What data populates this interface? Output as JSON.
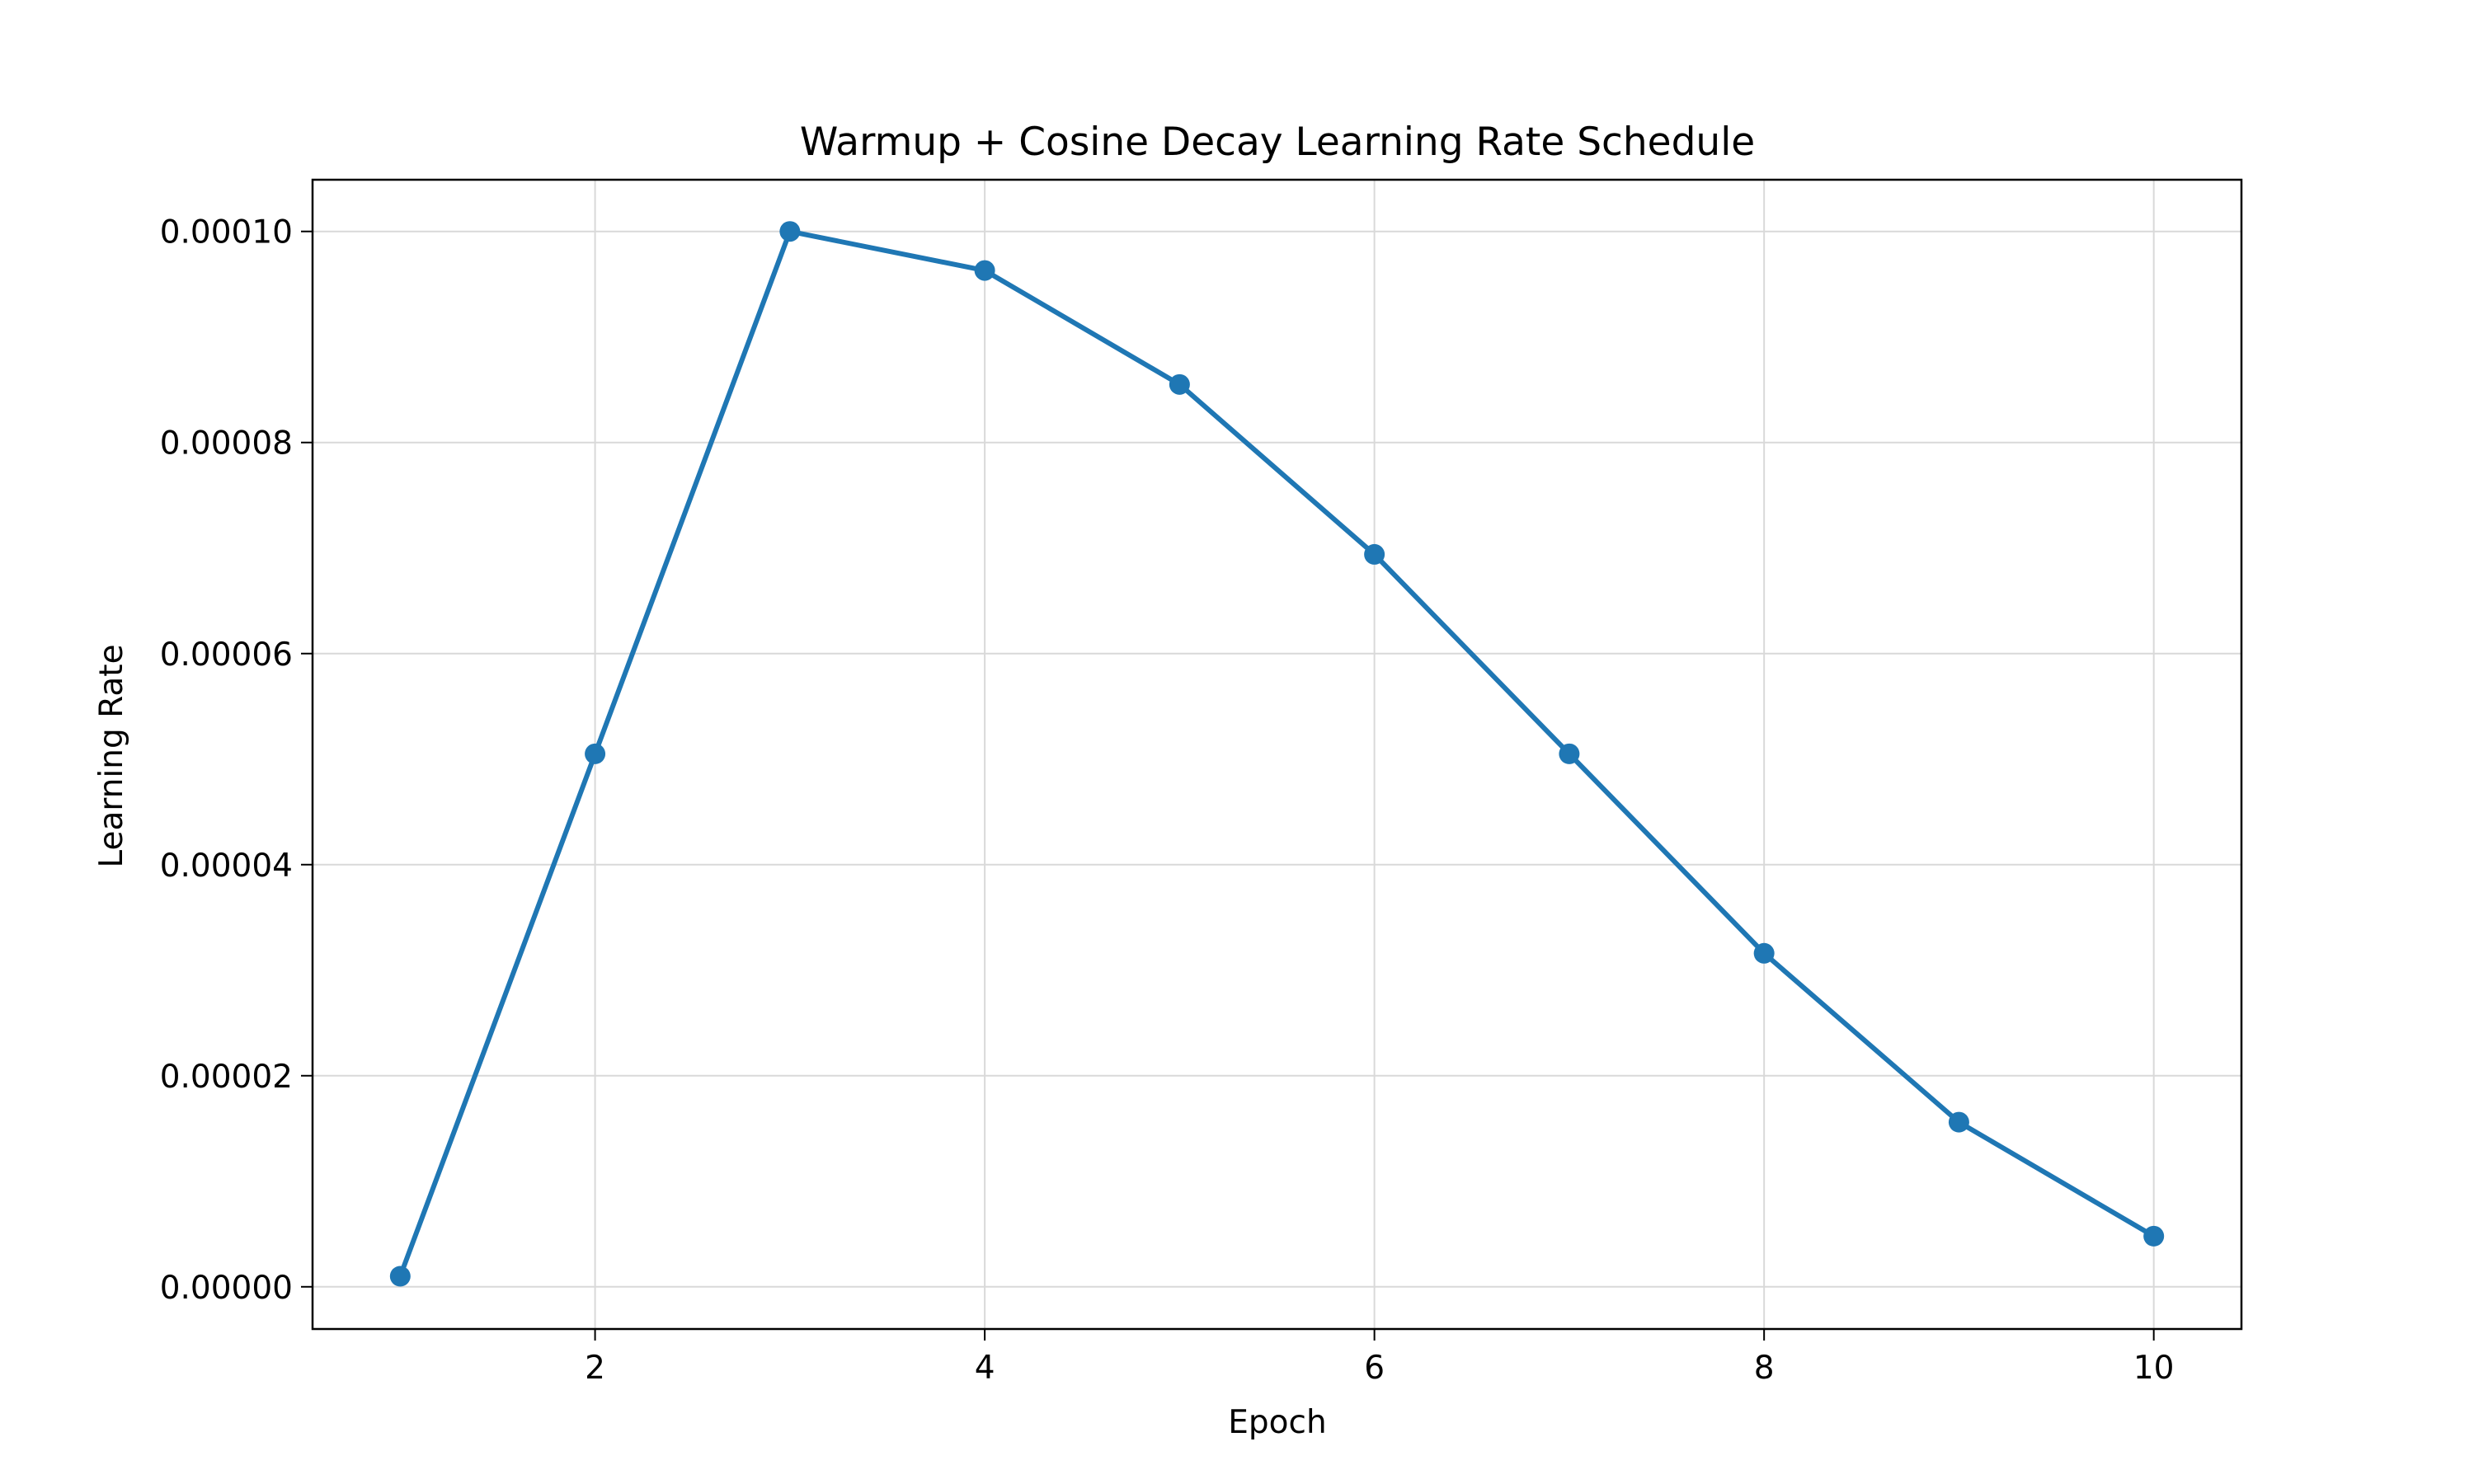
{
  "chart_data": {
    "type": "line",
    "title": "Warmup + Cosine Decay Learning Rate Schedule",
    "xlabel": "Epoch",
    "ylabel": "Learning Rate",
    "x": [
      1,
      2,
      3,
      4,
      5,
      6,
      7,
      8,
      9,
      10
    ],
    "series": [
      {
        "values": [
          1e-06,
          5.05e-05,
          0.0001,
          9.63e-05,
          8.55e-05,
          6.94e-05,
          5.05e-05,
          3.16e-05,
          1.56e-05,
          4.8e-06
        ],
        "color": "#1f77b4",
        "marker": "circle"
      }
    ],
    "xlim": [
      0.55,
      10.45
    ],
    "ylim": [
      -4e-06,
      0.0001049
    ],
    "xticks": [
      2,
      4,
      6,
      8,
      10
    ],
    "xtick_labels": [
      "2",
      "4",
      "6",
      "8",
      "10"
    ],
    "yticks": [
      0,
      2e-05,
      4e-05,
      6e-05,
      8e-05,
      0.0001
    ],
    "ytick_labels": [
      "0.00000",
      "0.00002",
      "0.00004",
      "0.00006",
      "0.00008",
      "0.00010"
    ],
    "grid": true
  }
}
